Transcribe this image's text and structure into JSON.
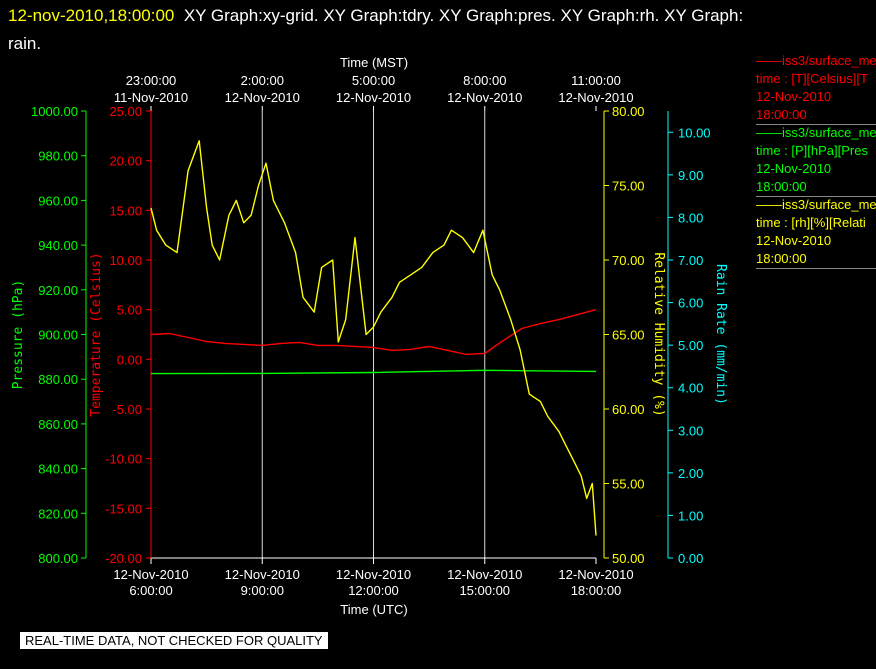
{
  "header": {
    "timestamp": "12-nov-2010,18:00:00",
    "graphs_line1": "XY Graph:xy-grid.  XY Graph:tdry.  XY Graph:pres.  XY Graph:rh.  XY Graph:",
    "graphs_line2": "rain."
  },
  "legend": [
    {
      "line1": "iss3/surface_me",
      "line2": "time : [T][Celsius][T",
      "line3": "12-Nov-2010",
      "line4": "18:00:00",
      "color": "#ff0000"
    },
    {
      "line1": "iss3/surface_me",
      "line2": "time : [P][hPa][Pres",
      "line3": "12-Nov-2010",
      "line4": "18:00:00",
      "color": "#00ff00"
    },
    {
      "line1": "iss3/surface_me",
      "line2": "time : [rh][%][Relati",
      "line3": "12-Nov-2010",
      "line4": "18:00:00",
      "color": "#ffff00"
    }
  ],
  "disclaimer": "REAL-TIME DATA, NOT CHECKED FOR QUALITY",
  "chart_data": {
    "type": "line",
    "x_range_utc_hours": [
      6,
      18
    ],
    "top_axis": {
      "title": "Time (MST)",
      "ticks": [
        {
          "hour": 6,
          "line1": "23:00:00",
          "line2": "11-Nov-2010"
        },
        {
          "hour": 9,
          "line1": "2:00:00",
          "line2": "12-Nov-2010"
        },
        {
          "hour": 12,
          "line1": "5:00:00",
          "line2": "12-Nov-2010"
        },
        {
          "hour": 15,
          "line1": "8:00:00",
          "line2": "12-Nov-2010"
        },
        {
          "hour": 18,
          "line1": "11:00:00",
          "line2": "12-Nov-2010"
        }
      ]
    },
    "bottom_axis": {
      "title": "Time (UTC)",
      "ticks": [
        {
          "hour": 6,
          "line1": "12-Nov-2010",
          "line2": "6:00:00"
        },
        {
          "hour": 9,
          "line1": "12-Nov-2010",
          "line2": "9:00:00"
        },
        {
          "hour": 12,
          "line1": "12-Nov-2010",
          "line2": "12:00:00"
        },
        {
          "hour": 15,
          "line1": "12-Nov-2010",
          "line2": "15:00:00"
        },
        {
          "hour": 18,
          "line1": "12-Nov-2010",
          "line2": "18:00:00"
        }
      ]
    },
    "y_axes": [
      {
        "id": "pressure",
        "label": "Pressure (hPa)",
        "color": "#00ff00",
        "min": 800,
        "max": 1000,
        "ticks": [
          "1000.00",
          "980.00",
          "960.00",
          "940.00",
          "920.00",
          "900.00",
          "880.00",
          "860.00",
          "840.00",
          "820.00",
          "800.00"
        ]
      },
      {
        "id": "temperature",
        "label": "Temperature (Celsius)",
        "color": "#ff0000",
        "min": -20,
        "max": 25,
        "ticks": [
          "25.00",
          "20.00",
          "15.00",
          "10.00",
          "5.00",
          "0.00",
          "-5.00",
          "-10.00",
          "-15.00",
          "-20.00"
        ]
      },
      {
        "id": "rh",
        "label": "Relative Humidity (%)",
        "color": "#ffff00",
        "min": 50,
        "max": 80,
        "ticks": [
          "80.00",
          "75.00",
          "70.00",
          "65.00",
          "60.00",
          "55.00",
          "50.00"
        ]
      },
      {
        "id": "rain",
        "label": "Rain Rate (mm/min)",
        "color": "#00ffff",
        "min": 0,
        "max": 10.5,
        "ticks": [
          "10.00",
          "9.00",
          "8.00",
          "7.00",
          "6.00",
          "5.00",
          "4.00",
          "3.00",
          "2.00",
          "1.00",
          "0.00"
        ]
      }
    ],
    "series": [
      {
        "axis": "temperature",
        "color": "#ff0000",
        "x": [
          6,
          6.5,
          7,
          7.5,
          8,
          8.5,
          9,
          9.5,
          10,
          10.5,
          11,
          11.5,
          12,
          12.5,
          13,
          13.5,
          14,
          14.5,
          15,
          15.5,
          16,
          16.5,
          17,
          17.5,
          18
        ],
        "y": [
          2.5,
          2.6,
          2.2,
          1.8,
          1.6,
          1.5,
          1.4,
          1.6,
          1.7,
          1.4,
          1.4,
          1.3,
          1.2,
          0.9,
          1.0,
          1.3,
          0.9,
          0.5,
          0.6,
          1.9,
          3.1,
          3.6,
          4.0,
          4.5,
          5.0
        ]
      },
      {
        "axis": "pressure",
        "color": "#00ff00",
        "x": [
          6,
          9,
          12,
          15,
          18
        ],
        "y": [
          882.5,
          882.6,
          883.0,
          884.0,
          883.5
        ]
      },
      {
        "axis": "rh",
        "color": "#ffff00",
        "x": [
          6,
          6.15,
          6.4,
          6.7,
          7.0,
          7.3,
          7.5,
          7.65,
          7.85,
          8.1,
          8.3,
          8.5,
          8.7,
          8.9,
          9.1,
          9.3,
          9.6,
          9.9,
          10.1,
          10.4,
          10.6,
          10.9,
          11.05,
          11.25,
          11.5,
          11.8,
          12.0,
          12.2,
          12.5,
          12.7,
          13.0,
          13.3,
          13.6,
          13.9,
          14.1,
          14.4,
          14.7,
          14.95,
          15.2,
          15.4,
          15.7,
          15.95,
          16.2,
          16.5,
          16.7,
          17.0,
          17.2,
          17.4,
          17.6,
          17.75,
          17.9,
          18.0
        ],
        "y": [
          73.5,
          72.0,
          71.0,
          70.5,
          76.0,
          78.0,
          73.5,
          71.0,
          70.0,
          73.0,
          74.0,
          72.5,
          73.0,
          75.0,
          76.5,
          74.0,
          72.5,
          70.5,
          67.5,
          66.5,
          69.5,
          70.0,
          64.5,
          66.0,
          71.5,
          65.0,
          65.5,
          66.5,
          67.5,
          68.5,
          69.0,
          69.5,
          70.5,
          71.0,
          72.0,
          71.5,
          70.5,
          72.0,
          69.0,
          68.0,
          66.0,
          64.0,
          61.0,
          60.5,
          59.5,
          58.5,
          57.5,
          56.5,
          55.5,
          54.0,
          55.0,
          51.5
        ]
      }
    ]
  }
}
